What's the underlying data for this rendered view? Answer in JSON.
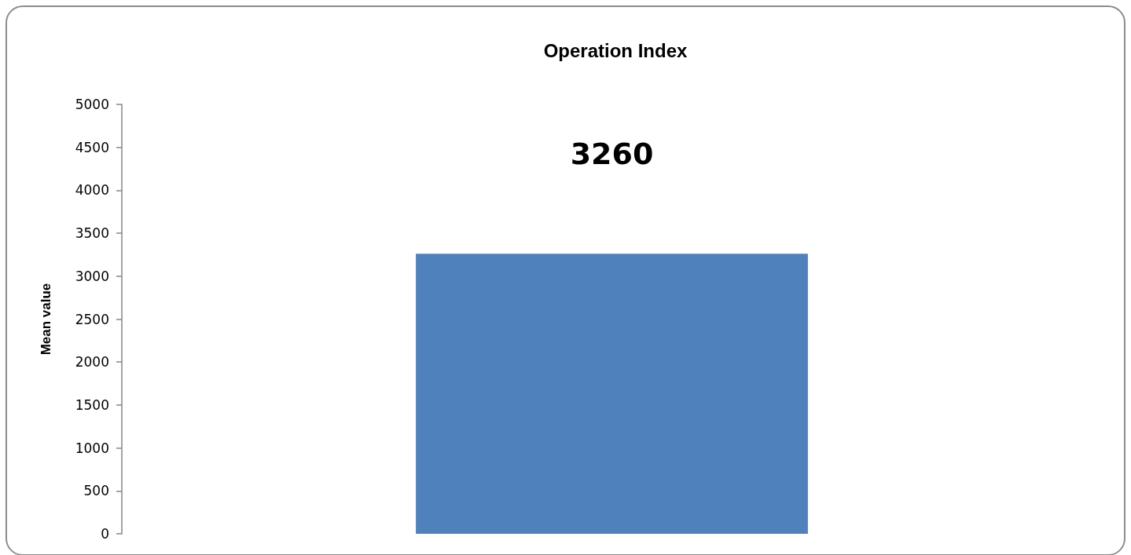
{
  "chart_data": {
    "type": "bar",
    "title": "Operation Index",
    "ylabel": "Mean value",
    "categories": [
      null
    ],
    "values": [
      3260
    ],
    "color": "#4f81bd",
    "ylim": [
      0,
      5000
    ],
    "yticks": [
      0,
      500,
      1000,
      1500,
      2000,
      2500,
      3000,
      3500,
      4000,
      4500,
      5000
    ],
    "grid": false,
    "data_labels": true
  }
}
